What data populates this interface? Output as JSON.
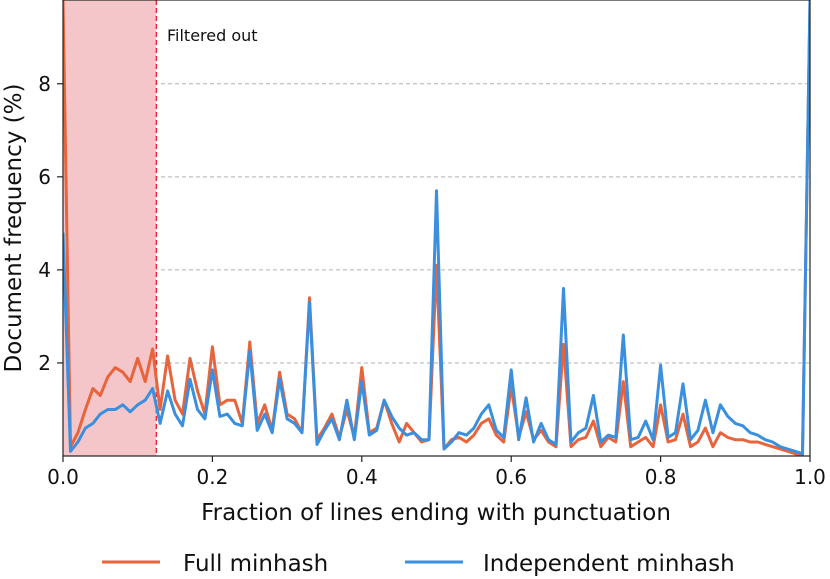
{
  "chart_data": {
    "type": "line",
    "xlabel": "Fraction of lines ending with punctuation",
    "ylabel": "Document frequency (%)",
    "xlim": [
      0.0,
      1.0
    ],
    "ylim": [
      0.0,
      9.8
    ],
    "xticks": [
      0.0,
      0.2,
      0.4,
      0.6,
      0.8,
      1.0
    ],
    "xtick_labels": [
      "0.0",
      "0.2",
      "0.4",
      "0.6",
      "0.8",
      "1.0"
    ],
    "yticks": [
      2,
      4,
      6,
      8
    ],
    "ytick_labels": [
      "2",
      "4",
      "6",
      "8"
    ],
    "grid": "horizontal dashed",
    "legend_position": "bottom, outside plot",
    "annotation": {
      "text": "Filtered out",
      "threshold_x": 0.125,
      "shaded_range": [
        0.0,
        0.125
      ],
      "shade_color": "#f4c6c9",
      "line_color": "#e03030"
    },
    "series": [
      {
        "name": "Full minhash",
        "color": "#e8643c",
        "x": [
          0.0,
          0.01,
          0.02,
          0.03,
          0.04,
          0.05,
          0.06,
          0.07,
          0.08,
          0.09,
          0.1,
          0.11,
          0.12,
          0.13,
          0.14,
          0.15,
          0.16,
          0.17,
          0.18,
          0.19,
          0.2,
          0.21,
          0.22,
          0.23,
          0.24,
          0.25,
          0.26,
          0.27,
          0.28,
          0.29,
          0.3,
          0.31,
          0.32,
          0.33,
          0.34,
          0.35,
          0.36,
          0.37,
          0.38,
          0.39,
          0.4,
          0.41,
          0.42,
          0.43,
          0.44,
          0.45,
          0.46,
          0.47,
          0.48,
          0.49,
          0.5,
          0.51,
          0.52,
          0.53,
          0.54,
          0.55,
          0.56,
          0.57,
          0.58,
          0.59,
          0.6,
          0.61,
          0.62,
          0.63,
          0.64,
          0.65,
          0.66,
          0.67,
          0.68,
          0.69,
          0.7,
          0.71,
          0.72,
          0.73,
          0.74,
          0.75,
          0.76,
          0.77,
          0.78,
          0.79,
          0.8,
          0.81,
          0.82,
          0.83,
          0.84,
          0.85,
          0.86,
          0.87,
          0.88,
          0.89,
          0.9,
          0.91,
          0.92,
          0.93,
          0.94,
          0.95,
          0.96,
          0.97,
          0.98,
          0.99,
          1.0
        ],
        "values": [
          9.8,
          0.2,
          0.5,
          1.0,
          1.45,
          1.3,
          1.7,
          1.9,
          1.8,
          1.6,
          2.1,
          1.6,
          2.3,
          1.0,
          2.15,
          1.2,
          0.9,
          2.1,
          1.4,
          0.9,
          2.35,
          1.1,
          1.2,
          1.2,
          0.7,
          2.45,
          0.7,
          1.1,
          0.55,
          1.8,
          0.9,
          0.8,
          0.5,
          3.4,
          0.35,
          0.6,
          0.9,
          0.4,
          1.0,
          0.4,
          1.9,
          0.5,
          0.6,
          1.2,
          0.7,
          0.3,
          0.7,
          0.5,
          0.3,
          0.35,
          4.1,
          0.15,
          0.35,
          0.4,
          0.3,
          0.45,
          0.7,
          0.8,
          0.45,
          0.3,
          1.5,
          0.4,
          0.95,
          0.35,
          0.55,
          0.3,
          0.2,
          2.4,
          0.2,
          0.35,
          0.4,
          0.75,
          0.2,
          0.4,
          0.3,
          1.6,
          0.2,
          0.3,
          0.4,
          0.2,
          1.1,
          0.3,
          0.35,
          0.9,
          0.2,
          0.3,
          0.6,
          0.2,
          0.5,
          0.4,
          0.35,
          0.35,
          0.3,
          0.3,
          0.25,
          0.2,
          0.15,
          0.1,
          0.05,
          0.02,
          9.8
        ]
      },
      {
        "name": "Independent minhash",
        "color": "#3a8fdf",
        "x": [
          0.0,
          0.01,
          0.02,
          0.03,
          0.04,
          0.05,
          0.06,
          0.07,
          0.08,
          0.09,
          0.1,
          0.11,
          0.12,
          0.13,
          0.14,
          0.15,
          0.16,
          0.17,
          0.18,
          0.19,
          0.2,
          0.21,
          0.22,
          0.23,
          0.24,
          0.25,
          0.26,
          0.27,
          0.28,
          0.29,
          0.3,
          0.31,
          0.32,
          0.33,
          0.34,
          0.35,
          0.36,
          0.37,
          0.38,
          0.39,
          0.4,
          0.41,
          0.42,
          0.43,
          0.44,
          0.45,
          0.46,
          0.47,
          0.48,
          0.49,
          0.5,
          0.51,
          0.52,
          0.53,
          0.54,
          0.55,
          0.56,
          0.57,
          0.58,
          0.59,
          0.6,
          0.61,
          0.62,
          0.63,
          0.64,
          0.65,
          0.66,
          0.67,
          0.68,
          0.69,
          0.7,
          0.71,
          0.72,
          0.73,
          0.74,
          0.75,
          0.76,
          0.77,
          0.78,
          0.79,
          0.8,
          0.81,
          0.82,
          0.83,
          0.84,
          0.85,
          0.86,
          0.87,
          0.88,
          0.89,
          0.9,
          0.91,
          0.92,
          0.93,
          0.94,
          0.95,
          0.96,
          0.97,
          0.98,
          0.99,
          1.0
        ],
        "values": [
          4.8,
          0.1,
          0.3,
          0.6,
          0.7,
          0.9,
          1.0,
          1.0,
          1.1,
          0.95,
          1.1,
          1.2,
          1.45,
          0.7,
          1.4,
          0.9,
          0.65,
          1.65,
          1.0,
          0.8,
          1.85,
          0.85,
          0.9,
          0.7,
          0.65,
          2.25,
          0.55,
          0.9,
          0.5,
          1.65,
          0.8,
          0.7,
          0.5,
          3.3,
          0.25,
          0.55,
          0.8,
          0.35,
          1.2,
          0.35,
          1.6,
          0.45,
          0.55,
          1.2,
          0.85,
          0.6,
          0.45,
          0.5,
          0.35,
          0.35,
          5.7,
          0.15,
          0.3,
          0.5,
          0.45,
          0.6,
          0.9,
          1.1,
          0.55,
          0.4,
          1.85,
          0.35,
          1.25,
          0.3,
          0.7,
          0.35,
          0.25,
          3.6,
          0.3,
          0.5,
          0.6,
          1.3,
          0.3,
          0.45,
          0.4,
          2.6,
          0.35,
          0.4,
          0.75,
          0.35,
          1.95,
          0.4,
          0.5,
          1.55,
          0.35,
          0.55,
          1.2,
          0.5,
          1.1,
          0.85,
          0.7,
          0.65,
          0.5,
          0.45,
          0.35,
          0.3,
          0.2,
          0.15,
          0.1,
          0.05,
          9.8
        ]
      }
    ]
  }
}
